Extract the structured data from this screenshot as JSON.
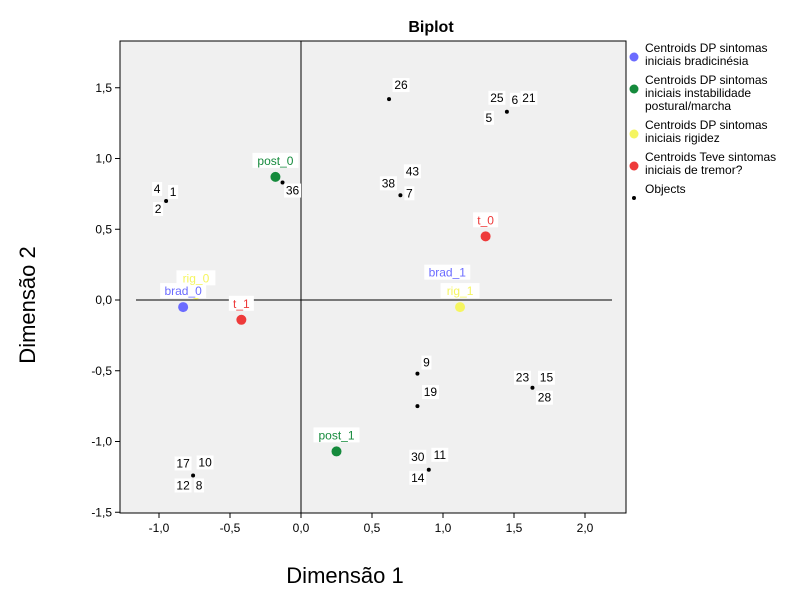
{
  "chart_data": {
    "type": "scatter",
    "title": "Biplot",
    "xlabel": "Dimensão 1",
    "ylabel": "Dimensão 2",
    "xlim": [
      -1.25,
      2.25
    ],
    "ylim": [
      -1.5,
      1.85
    ],
    "xticks": [
      -1.0,
      -0.5,
      0.0,
      0.5,
      1.0,
      1.5,
      2.0
    ],
    "xtick_labels": [
      "-1,0",
      "-0,5",
      "0,0",
      "0,5",
      "1,0",
      "1,5",
      "2,0"
    ],
    "yticks": [
      -1.5,
      -1.0,
      -0.5,
      0.0,
      0.5,
      1.0,
      1.5
    ],
    "ytick_labels": [
      "-1,5",
      "-1,0",
      "-0,5",
      "0,0",
      "0,5",
      "1,0",
      "1,5"
    ],
    "grid": false,
    "legend_position": "right",
    "colors": {
      "plot_bg": "#f0f0f0",
      "brad": "#6b6bff",
      "post": "#158a3c",
      "rig": "#f5f560",
      "t": "#ee3a3a",
      "objects": "#000000"
    },
    "series": [
      {
        "name": "Centroids DP sintomas iniciais bradicinésia",
        "legend_lines": [
          "Centroids DP sintomas",
          "iniciais bradicinésia"
        ],
        "color_key": "brad",
        "points": [
          {
            "label": "brad_0",
            "x": -0.83,
            "y": -0.05
          },
          {
            "label": "brad_1",
            "x": 1.03,
            "y": 0.08
          }
        ]
      },
      {
        "name": "Centroids DP sintomas iniciais instabilidade postural/marcha",
        "legend_lines": [
          "Centroids DP sintomas",
          "iniciais instabilidade",
          "postural/marcha"
        ],
        "color_key": "post",
        "points": [
          {
            "label": "post_0",
            "x": -0.18,
            "y": 0.87
          },
          {
            "label": "post_1",
            "x": 0.25,
            "y": -1.07
          }
        ]
      },
      {
        "name": "Centroids DP sintomas iniciais rigidez",
        "legend_lines": [
          "Centroids DP sintomas",
          "iniciais rigidez"
        ],
        "color_key": "rig",
        "points": [
          {
            "label": "rig_0",
            "x": -0.74,
            "y": 0.04
          },
          {
            "label": "rig_1",
            "x": 1.12,
            "y": -0.05
          }
        ]
      },
      {
        "name": "Centroids Teve sintomas iniciais de tremor?",
        "legend_lines": [
          "Centroids Teve sintomas",
          "iniciais de tremor?"
        ],
        "color_key": "t",
        "points": [
          {
            "label": "t_0",
            "x": 1.3,
            "y": 0.45
          },
          {
            "label": "t_1",
            "x": -0.42,
            "y": -0.14
          }
        ]
      },
      {
        "name": "Objects",
        "legend_lines": [
          "Objects"
        ],
        "color_key": "objects",
        "points": [
          {
            "x": 0.62,
            "y": 1.42
          },
          {
            "x": 1.45,
            "y": 1.33
          },
          {
            "x": -0.13,
            "y": 0.83
          },
          {
            "x": 0.7,
            "y": 0.74
          },
          {
            "x": -0.95,
            "y": 0.7
          },
          {
            "x": 0.82,
            "y": -0.52
          },
          {
            "x": 1.63,
            "y": -0.62
          },
          {
            "x": 0.82,
            "y": -0.75
          },
          {
            "x": -0.76,
            "y": -1.24
          },
          {
            "x": 0.9,
            "y": -1.2
          }
        ]
      }
    ],
    "object_labels": [
      {
        "text": "26",
        "x": 0.62,
        "y": 1.42
      },
      {
        "text": "25",
        "x": 1.45,
        "y": 1.33
      },
      {
        "text": "6",
        "x": 1.45,
        "y": 1.33
      },
      {
        "text": "21",
        "x": 1.45,
        "y": 1.33
      },
      {
        "text": "5",
        "x": 1.45,
        "y": 1.33
      },
      {
        "text": "36",
        "x": -0.13,
        "y": 0.83
      },
      {
        "text": "38",
        "x": 0.7,
        "y": 0.74
      },
      {
        "text": "43",
        "x": 0.7,
        "y": 0.74
      },
      {
        "text": "7",
        "x": 0.7,
        "y": 0.74
      },
      {
        "text": "4",
        "x": -0.95,
        "y": 0.7
      },
      {
        "text": "1",
        "x": -0.95,
        "y": 0.7
      },
      {
        "text": "2",
        "x": -0.95,
        "y": 0.7
      },
      {
        "text": "9",
        "x": 0.82,
        "y": -0.52
      },
      {
        "text": "23",
        "x": 1.63,
        "y": -0.62
      },
      {
        "text": "15",
        "x": 1.63,
        "y": -0.62
      },
      {
        "text": "28",
        "x": 1.63,
        "y": -0.62
      },
      {
        "text": "19",
        "x": 0.82,
        "y": -0.75
      },
      {
        "text": "17",
        "x": -0.76,
        "y": -1.24
      },
      {
        "text": "10",
        "x": -0.76,
        "y": -1.24
      },
      {
        "text": "12",
        "x": -0.76,
        "y": -1.24
      },
      {
        "text": "8",
        "x": -0.76,
        "y": -1.24
      },
      {
        "text": "30",
        "x": 0.9,
        "y": -1.2
      },
      {
        "text": "11",
        "x": 0.9,
        "y": -1.2
      },
      {
        "text": "14",
        "x": 0.9,
        "y": -1.2
      }
    ]
  }
}
